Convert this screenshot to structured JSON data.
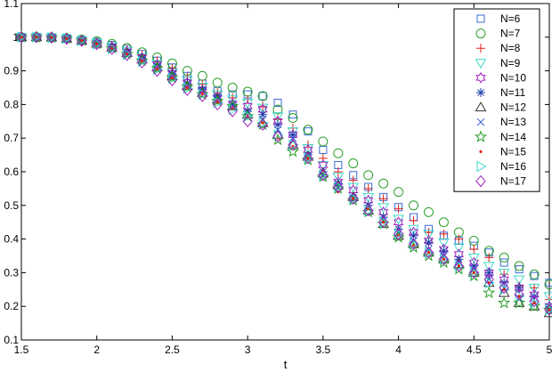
{
  "chart_data": {
    "type": "scatter",
    "title": "",
    "xlabel": "t",
    "ylabel": "",
    "xlim": [
      1.5,
      5.0
    ],
    "ylim": [
      0.1,
      1.1
    ],
    "xticks": [
      "1.5",
      "2",
      "2.5",
      "3",
      "3.5",
      "4",
      "4.5",
      "5"
    ],
    "yticks": [
      "0.1",
      "0.2",
      "0.3",
      "0.4",
      "0.5",
      "0.6",
      "0.7",
      "0.8",
      "0.9",
      "1",
      "1.1"
    ],
    "grid": false,
    "legend_position": "top-right",
    "x": [
      1.5,
      1.6,
      1.7,
      1.8,
      1.9,
      2.0,
      2.1,
      2.2,
      2.3,
      2.4,
      2.5,
      2.6,
      2.7,
      2.8,
      2.9,
      3.0,
      3.1,
      3.2,
      3.3,
      3.4,
      3.5,
      3.6,
      3.7,
      3.8,
      3.9,
      4.0,
      4.1,
      4.2,
      4.3,
      4.4,
      4.5,
      4.6,
      4.7,
      4.8,
      4.9,
      5.0
    ],
    "series": [
      {
        "name": "N=6",
        "marker": "square",
        "color": "#3a6bd6",
        "values": [
          1.0,
          1.0,
          0.999,
          0.997,
          0.992,
          0.986,
          0.977,
          0.965,
          0.95,
          0.93,
          0.91,
          0.885,
          0.862,
          0.84,
          0.83,
          0.83,
          0.825,
          0.805,
          0.77,
          0.72,
          0.665,
          0.62,
          0.59,
          0.555,
          0.525,
          0.495,
          0.465,
          0.43,
          0.41,
          0.395,
          0.38,
          0.36,
          0.33,
          0.31,
          0.29,
          0.27
        ]
      },
      {
        "name": "N=7",
        "marker": "circle",
        "color": "#2ca02c",
        "values": [
          1.0,
          1.0,
          0.999,
          0.997,
          0.993,
          0.988,
          0.98,
          0.968,
          0.955,
          0.94,
          0.922,
          0.9,
          0.885,
          0.865,
          0.85,
          0.838,
          0.825,
          0.785,
          0.76,
          0.725,
          0.69,
          0.655,
          0.625,
          0.59,
          0.565,
          0.54,
          0.5,
          0.48,
          0.45,
          0.42,
          0.395,
          0.365,
          0.345,
          0.32,
          0.295,
          0.265
        ]
      },
      {
        "name": "N=8",
        "marker": "plus",
        "color": "#e0201b",
        "values": [
          1.0,
          1.0,
          0.999,
          0.997,
          0.992,
          0.985,
          0.975,
          0.963,
          0.948,
          0.93,
          0.908,
          0.882,
          0.86,
          0.835,
          0.82,
          0.815,
          0.795,
          0.755,
          0.73,
          0.68,
          0.64,
          0.6,
          0.575,
          0.55,
          0.52,
          0.49,
          0.455,
          0.42,
          0.415,
          0.4,
          0.37,
          0.345,
          0.295,
          0.26,
          0.255,
          0.22
        ]
      },
      {
        "name": "N=9",
        "marker": "triangle-down",
        "color": "#3fd9c8",
        "values": [
          1.0,
          1.0,
          0.999,
          0.996,
          0.991,
          0.983,
          0.972,
          0.958,
          0.94,
          0.92,
          0.895,
          0.872,
          0.852,
          0.83,
          0.815,
          0.805,
          0.79,
          0.765,
          0.72,
          0.67,
          0.62,
          0.585,
          0.555,
          0.525,
          0.495,
          0.46,
          0.43,
          0.415,
          0.39,
          0.375,
          0.345,
          0.32,
          0.3,
          0.28,
          0.255,
          0.23
        ]
      },
      {
        "name": "N=10",
        "marker": "hexagram",
        "color": "#a020c0",
        "values": [
          1.0,
          1.0,
          0.999,
          0.996,
          0.991,
          0.983,
          0.972,
          0.957,
          0.939,
          0.918,
          0.893,
          0.865,
          0.842,
          0.82,
          0.802,
          0.795,
          0.785,
          0.75,
          0.71,
          0.665,
          0.62,
          0.57,
          0.545,
          0.515,
          0.48,
          0.45,
          0.42,
          0.395,
          0.37,
          0.355,
          0.33,
          0.3,
          0.28,
          0.255,
          0.235,
          0.2
        ]
      },
      {
        "name": "N=11",
        "marker": "asterisk",
        "color": "#1f3fa8",
        "values": [
          1.0,
          1.0,
          0.999,
          0.996,
          0.99,
          0.982,
          0.97,
          0.955,
          0.937,
          0.915,
          0.89,
          0.862,
          0.845,
          0.825,
          0.8,
          0.78,
          0.77,
          0.74,
          0.71,
          0.65,
          0.6,
          0.565,
          0.525,
          0.5,
          0.465,
          0.43,
          0.41,
          0.39,
          0.365,
          0.34,
          0.32,
          0.3,
          0.27,
          0.255,
          0.23,
          0.2
        ]
      },
      {
        "name": "N=12",
        "marker": "triangle-up",
        "color": "#333333",
        "values": [
          1.0,
          1.0,
          0.999,
          0.996,
          0.99,
          0.981,
          0.969,
          0.953,
          0.934,
          0.911,
          0.885,
          0.856,
          0.835,
          0.815,
          0.795,
          0.77,
          0.745,
          0.71,
          0.68,
          0.645,
          0.595,
          0.56,
          0.525,
          0.485,
          0.445,
          0.41,
          0.385,
          0.36,
          0.34,
          0.325,
          0.3,
          0.27,
          0.24,
          0.21,
          0.2,
          0.18
        ]
      },
      {
        "name": "N=13",
        "marker": "cross",
        "color": "#2b55d9",
        "values": [
          1.0,
          1.0,
          0.999,
          0.996,
          0.99,
          0.981,
          0.968,
          0.952,
          0.933,
          0.91,
          0.883,
          0.855,
          0.838,
          0.815,
          0.793,
          0.775,
          0.755,
          0.725,
          0.7,
          0.645,
          0.59,
          0.555,
          0.52,
          0.49,
          0.455,
          0.42,
          0.395,
          0.37,
          0.35,
          0.33,
          0.31,
          0.28,
          0.255,
          0.225,
          0.21,
          0.19
        ]
      },
      {
        "name": "N=14",
        "marker": "pentagram",
        "color": "#2ca02c",
        "values": [
          1.0,
          1.0,
          0.999,
          0.996,
          0.99,
          0.98,
          0.967,
          0.95,
          0.93,
          0.907,
          0.88,
          0.852,
          0.83,
          0.81,
          0.795,
          0.765,
          0.74,
          0.695,
          0.66,
          0.635,
          0.585,
          0.55,
          0.515,
          0.48,
          0.445,
          0.405,
          0.375,
          0.35,
          0.33,
          0.31,
          0.29,
          0.24,
          0.21,
          0.21,
          0.2,
          0.19
        ]
      },
      {
        "name": "N=15",
        "marker": "dot",
        "color": "#e0201b",
        "values": [
          1.0,
          1.0,
          0.999,
          0.996,
          0.99,
          0.98,
          0.967,
          0.95,
          0.93,
          0.906,
          0.879,
          0.85,
          0.832,
          0.808,
          0.79,
          0.765,
          0.745,
          0.7,
          0.675,
          0.64,
          0.6,
          0.54,
          0.52,
          0.49,
          0.45,
          0.41,
          0.38,
          0.36,
          0.34,
          0.32,
          0.3,
          0.27,
          0.25,
          0.23,
          0.21,
          0.19
        ]
      },
      {
        "name": "N=16",
        "marker": "triangle-right",
        "color": "#3fd9c8",
        "values": [
          1.0,
          1.0,
          0.999,
          0.996,
          0.99,
          0.98,
          0.966,
          0.949,
          0.928,
          0.904,
          0.877,
          0.848,
          0.83,
          0.805,
          0.785,
          0.765,
          0.745,
          0.71,
          0.68,
          0.64,
          0.59,
          0.555,
          0.52,
          0.485,
          0.45,
          0.415,
          0.385,
          0.36,
          0.34,
          0.32,
          0.3,
          0.27,
          0.25,
          0.23,
          0.21,
          0.19
        ]
      },
      {
        "name": "N=17",
        "marker": "diamond",
        "color": "#a020c0",
        "values": [
          1.0,
          1.0,
          0.999,
          0.995,
          0.989,
          0.979,
          0.965,
          0.947,
          0.925,
          0.9,
          0.872,
          0.843,
          0.825,
          0.8,
          0.78,
          0.75,
          0.74,
          0.705,
          0.68,
          0.64,
          0.59,
          0.555,
          0.52,
          0.485,
          0.45,
          0.415,
          0.385,
          0.36,
          0.34,
          0.32,
          0.3,
          0.28,
          0.255,
          0.235,
          0.215,
          0.19
        ]
      }
    ]
  }
}
